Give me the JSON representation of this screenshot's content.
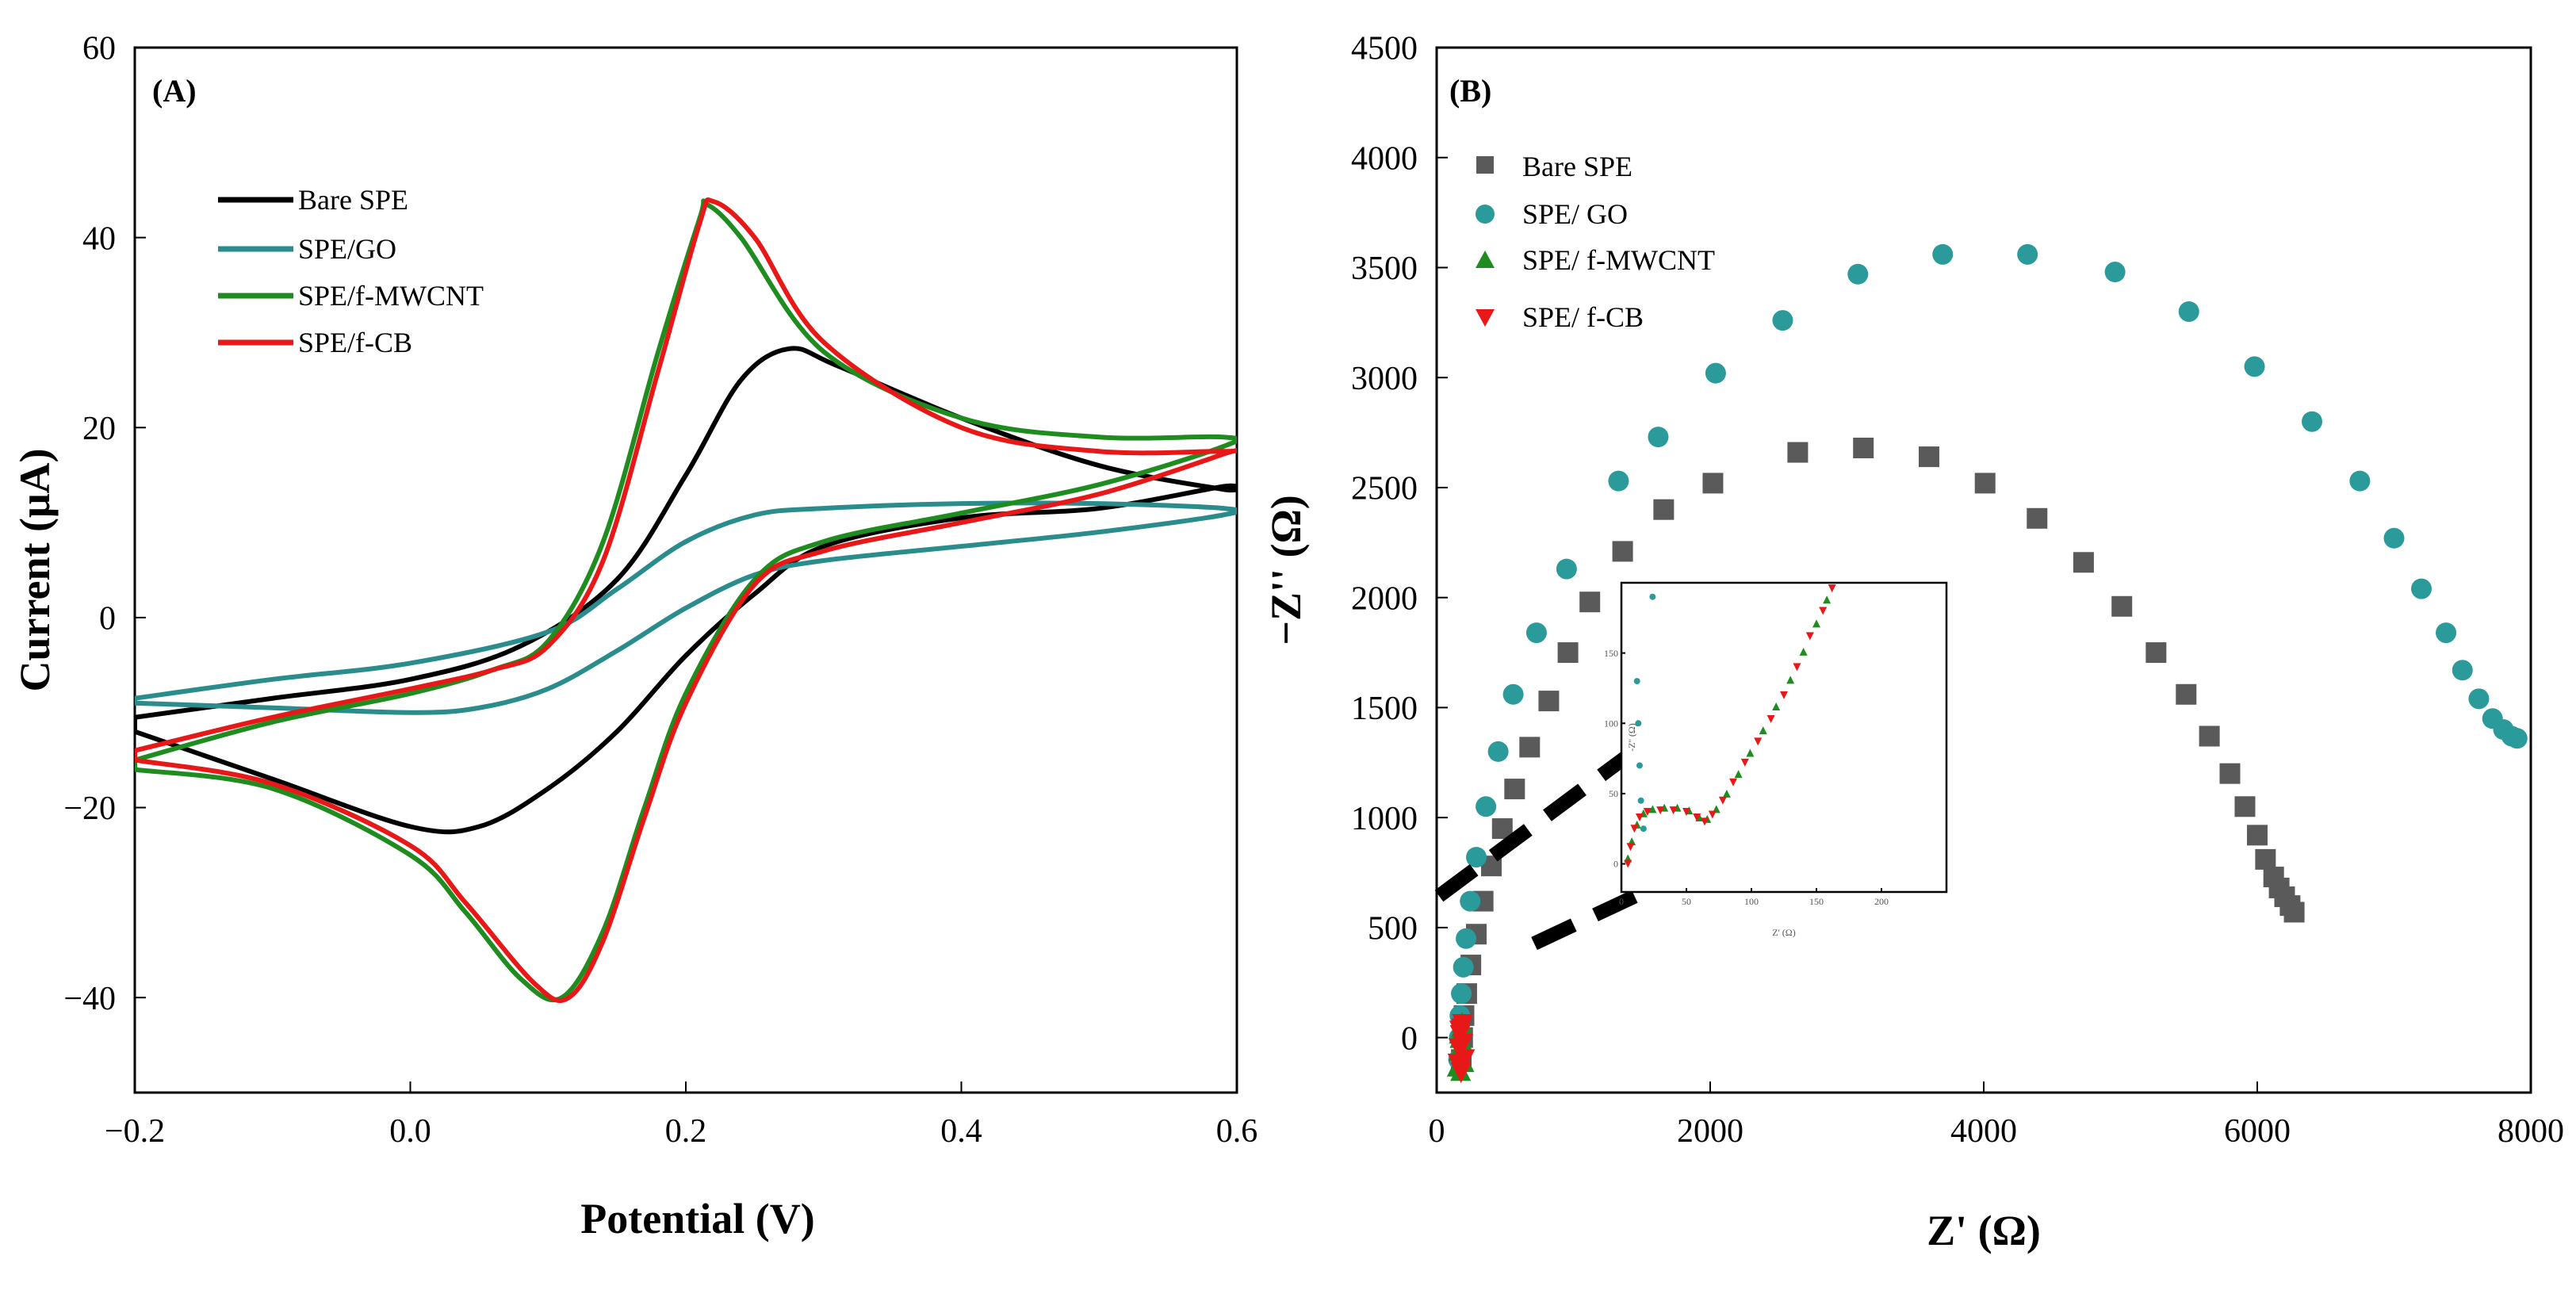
{
  "chart_data": [
    {
      "type": "line",
      "panel_label": "(A)",
      "title": "",
      "xlabel": "Potential (V)",
      "ylabel": "Current (μA)",
      "xlim": [
        -0.2,
        0.6
      ],
      "ylim": [
        -50,
        60
      ],
      "xticks": [
        -0.2,
        0.0,
        0.2,
        0.4,
        0.6
      ],
      "xtick_labels": [
        "−0.2",
        "0.0",
        "0.2",
        "0.4",
        "0.6"
      ],
      "yticks": [
        -40,
        -20,
        0,
        20,
        40,
        60
      ],
      "ytick_labels": [
        "−40",
        "−20",
        "0",
        "20",
        "40",
        "60"
      ],
      "grid": false,
      "legend_position": "upper-left",
      "series": [
        {
          "name": "Bare SPE",
          "color": "#000000",
          "points": [
            [
              -0.2,
              -10.5
            ],
            [
              -0.1,
              -8.5
            ],
            [
              0.0,
              -6.5
            ],
            [
              0.08,
              -3
            ],
            [
              0.15,
              4
            ],
            [
              0.2,
              15
            ],
            [
              0.24,
              25
            ],
            [
              0.275,
              28.3
            ],
            [
              0.31,
              26.5
            ],
            [
              0.4,
              21
            ],
            [
              0.5,
              16
            ],
            [
              0.59,
              13.5
            ],
            [
              0.59,
              13.8
            ],
            [
              0.5,
              11.5
            ],
            [
              0.4,
              10.5
            ],
            [
              0.3,
              7.5
            ],
            [
              0.25,
              2.5
            ],
            [
              0.2,
              -4
            ],
            [
              0.15,
              -12
            ],
            [
              0.1,
              -18
            ],
            [
              0.05,
              -22
            ],
            [
              0.0,
              -22
            ],
            [
              -0.1,
              -17
            ],
            [
              -0.2,
              -12
            ]
          ]
        },
        {
          "name": "SPE/GO",
          "color": "#2a8c8c",
          "points": [
            [
              -0.2,
              -8.5
            ],
            [
              -0.1,
              -6.5
            ],
            [
              0.0,
              -4.8
            ],
            [
              0.1,
              -1.5
            ],
            [
              0.15,
              3
            ],
            [
              0.2,
              8
            ],
            [
              0.25,
              10.8
            ],
            [
              0.3,
              11.5
            ],
            [
              0.4,
              12
            ],
            [
              0.5,
              12
            ],
            [
              0.59,
              11.5
            ],
            [
              0.59,
              10.8
            ],
            [
              0.5,
              9
            ],
            [
              0.4,
              7.5
            ],
            [
              0.3,
              6
            ],
            [
              0.25,
              4.5
            ],
            [
              0.2,
              1
            ],
            [
              0.15,
              -3.5
            ],
            [
              0.1,
              -7.5
            ],
            [
              0.05,
              -9.5
            ],
            [
              0.0,
              -10
            ],
            [
              -0.1,
              -9.5
            ],
            [
              -0.2,
              -9
            ]
          ]
        },
        {
          "name": "SPE/f-MWCNT",
          "color": "#1e8c1e",
          "points": [
            [
              -0.2,
              -15
            ],
            [
              -0.1,
              -11
            ],
            [
              0.0,
              -8
            ],
            [
              0.06,
              -5.5
            ],
            [
              0.1,
              -2.5
            ],
            [
              0.14,
              8
            ],
            [
              0.18,
              28
            ],
            [
              0.21,
              42
            ],
            [
              0.215,
              43.5
            ],
            [
              0.24,
              40
            ],
            [
              0.3,
              28
            ],
            [
              0.4,
              21
            ],
            [
              0.5,
              19
            ],
            [
              0.59,
              19
            ],
            [
              0.59,
              18
            ],
            [
              0.5,
              14
            ],
            [
              0.4,
              11
            ],
            [
              0.3,
              8
            ],
            [
              0.25,
              4
            ],
            [
              0.2,
              -8
            ],
            [
              0.17,
              -20
            ],
            [
              0.14,
              -33
            ],
            [
              0.11,
              -40
            ],
            [
              0.08,
              -38
            ],
            [
              0.04,
              -31
            ],
            [
              0.0,
              -25
            ],
            [
              -0.1,
              -18
            ],
            [
              -0.2,
              -16
            ]
          ]
        },
        {
          "name": "SPE/f-CB",
          "color": "#e81818",
          "points": [
            [
              -0.2,
              -14
            ],
            [
              -0.1,
              -10.5
            ],
            [
              0.0,
              -7.5
            ],
            [
              0.06,
              -5.5
            ],
            [
              0.1,
              -3
            ],
            [
              0.14,
              6
            ],
            [
              0.18,
              26
            ],
            [
              0.21,
              41.5
            ],
            [
              0.22,
              43.8
            ],
            [
              0.25,
              40
            ],
            [
              0.3,
              29
            ],
            [
              0.4,
              20
            ],
            [
              0.5,
              17.5
            ],
            [
              0.59,
              17.5
            ],
            [
              0.59,
              17.2
            ],
            [
              0.5,
              13
            ],
            [
              0.4,
              10
            ],
            [
              0.3,
              7
            ],
            [
              0.25,
              3.5
            ],
            [
              0.2,
              -9
            ],
            [
              0.17,
              -21
            ],
            [
              0.14,
              -34
            ],
            [
              0.115,
              -40
            ],
            [
              0.09,
              -38.5
            ],
            [
              0.04,
              -30
            ],
            [
              0.0,
              -24
            ],
            [
              -0.1,
              -17.5
            ],
            [
              -0.2,
              -15
            ]
          ]
        }
      ]
    },
    {
      "type": "scatter",
      "panel_label": "(B)",
      "title": "",
      "xlabel": "Z' (Ω)",
      "ylabel": "−Z'' (Ω)",
      "xlim": [
        0,
        8000
      ],
      "ylim": [
        -250,
        4500
      ],
      "xticks": [
        0,
        2000,
        4000,
        6000,
        8000
      ],
      "xtick_labels": [
        "0",
        "2000",
        "4000",
        "6000",
        "8000"
      ],
      "yticks": [
        0,
        500,
        1000,
        1500,
        2000,
        2500,
        3000,
        3500,
        4000,
        4500
      ],
      "ytick_labels": [
        "0",
        "500",
        "1000",
        "1500",
        "2000",
        "2500",
        "3000",
        "3500",
        "4000",
        "4500"
      ],
      "grid": false,
      "legend_position": "upper-left",
      "series": [
        {
          "name": "Bare SPE",
          "color": "#5a5a5a",
          "marker": "square",
          "points": [
            [
              180,
              -100
            ],
            [
              190,
              0
            ],
            [
              200,
              100
            ],
            [
              220,
              200
            ],
            [
              250,
              330
            ],
            [
              290,
              470
            ],
            [
              340,
              620
            ],
            [
              400,
              780
            ],
            [
              480,
              950
            ],
            [
              570,
              1130
            ],
            [
              680,
              1320
            ],
            [
              820,
              1530
            ],
            [
              960,
              1750
            ],
            [
              1120,
              1980
            ],
            [
              1360,
              2210
            ],
            [
              1660,
              2400
            ],
            [
              2020,
              2520
            ],
            [
              2640,
              2660
            ],
            [
              3120,
              2680
            ],
            [
              3600,
              2640
            ],
            [
              4010,
              2520
            ],
            [
              4390,
              2360
            ],
            [
              4730,
              2160
            ],
            [
              5010,
              1960
            ],
            [
              5260,
              1750
            ],
            [
              5480,
              1560
            ],
            [
              5650,
              1370
            ],
            [
              5800,
              1200
            ],
            [
              5910,
              1050
            ],
            [
              6000,
              920
            ],
            [
              6060,
              810
            ],
            [
              6120,
              730
            ],
            [
              6160,
              680
            ],
            [
              6200,
              640
            ],
            [
              6240,
              600
            ],
            [
              6270,
              570
            ]
          ]
        },
        {
          "name": "SPE/ GO",
          "color": "#2a9a9a",
          "marker": "circle",
          "points": [
            [
              160,
              -100
            ],
            [
              165,
              0
            ],
            [
              170,
              100
            ],
            [
              180,
              200
            ],
            [
              195,
              320
            ],
            [
              215,
              450
            ],
            [
              245,
              620
            ],
            [
              290,
              820
            ],
            [
              360,
              1050
            ],
            [
              450,
              1300
            ],
            [
              560,
              1560
            ],
            [
              730,
              1840
            ],
            [
              950,
              2130
            ],
            [
              1330,
              2530
            ],
            [
              1620,
              2730
            ],
            [
              2040,
              3020
            ],
            [
              2530,
              3260
            ],
            [
              3080,
              3470
            ],
            [
              3700,
              3560
            ],
            [
              4320,
              3560
            ],
            [
              4960,
              3480
            ],
            [
              5500,
              3300
            ],
            [
              5980,
              3050
            ],
            [
              6400,
              2800
            ],
            [
              6750,
              2530
            ],
            [
              7000,
              2270
            ],
            [
              7200,
              2040
            ],
            [
              7380,
              1840
            ],
            [
              7500,
              1670
            ],
            [
              7620,
              1540
            ],
            [
              7720,
              1450
            ],
            [
              7800,
              1400
            ],
            [
              7860,
              1370
            ],
            [
              7900,
              1360
            ]
          ]
        },
        {
          "name": "SPE/ f-MWCNT",
          "color": "#1e8c1e",
          "marker": "triangle-up",
          "points": [
            [
              150,
              -130
            ],
            [
              160,
              -60
            ],
            [
              170,
              0
            ],
            [
              180,
              50
            ],
            [
              190,
              -20
            ],
            [
              200,
              -110
            ],
            [
              175,
              -150
            ],
            [
              165,
              20
            ],
            [
              185,
              70
            ]
          ]
        },
        {
          "name": "SPE/ f-CB",
          "color": "#e81818",
          "marker": "triangle-down",
          "points": [
            [
              155,
              -120
            ],
            [
              162,
              -50
            ],
            [
              172,
              10
            ],
            [
              182,
              40
            ],
            [
              192,
              -30
            ],
            [
              205,
              -100
            ],
            [
              178,
              -160
            ],
            [
              168,
              30
            ],
            [
              188,
              60
            ]
          ]
        }
      ],
      "inset": {
        "xlabel": "Z' (Ω)",
        "ylabel": "-Z'' (Ω)",
        "xlim": [
          0,
          250
        ],
        "ylim": [
          -20,
          200
        ],
        "xticks": [
          0,
          50,
          100,
          150,
          200
        ],
        "xtick_labels": [
          "0",
          "50",
          "100",
          "150",
          "200"
        ],
        "yticks": [
          0,
          50,
          100,
          150
        ],
        "ytick_labels": [
          "0",
          "50",
          "100",
          "150"
        ],
        "teal_points": [
          [
            12,
            130
          ],
          [
            13,
            100
          ],
          [
            14,
            70
          ],
          [
            15,
            45
          ],
          [
            17,
            25
          ],
          [
            24,
            190
          ]
        ],
        "red_points": [
          [
            5,
            0
          ],
          [
            7,
            12
          ],
          [
            10,
            25
          ],
          [
            14,
            33
          ],
          [
            20,
            37
          ],
          [
            30,
            38
          ],
          [
            40,
            38
          ],
          [
            50,
            37
          ],
          [
            58,
            33
          ],
          [
            64,
            30
          ],
          [
            70,
            35
          ],
          [
            78,
            45
          ],
          [
            86,
            58
          ],
          [
            95,
            72
          ],
          [
            105,
            87
          ],
          [
            115,
            103
          ],
          [
            125,
            120
          ],
          [
            135,
            140
          ],
          [
            145,
            162
          ],
          [
            155,
            180
          ],
          [
            162,
            196
          ]
        ],
        "green_points": [
          [
            5,
            4
          ],
          [
            8,
            16
          ],
          [
            12,
            28
          ],
          [
            17,
            36
          ],
          [
            24,
            39
          ],
          [
            33,
            40
          ],
          [
            43,
            40
          ],
          [
            52,
            38
          ],
          [
            60,
            33
          ],
          [
            66,
            32
          ],
          [
            73,
            39
          ],
          [
            81,
            50
          ],
          [
            90,
            64
          ],
          [
            99,
            79
          ],
          [
            109,
            95
          ],
          [
            119,
            112
          ],
          [
            130,
            131
          ],
          [
            140,
            151
          ],
          [
            150,
            171
          ],
          [
            158,
            188
          ]
        ]
      }
    }
  ]
}
